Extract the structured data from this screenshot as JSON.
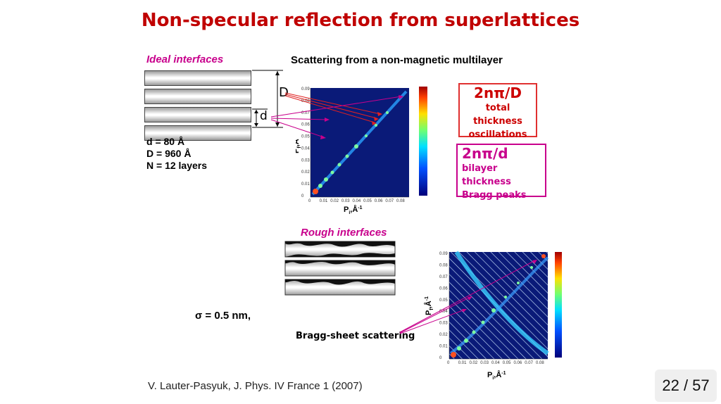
{
  "slide": {
    "title": "Non-specular reflection from superlattices",
    "ideal_label": "Ideal interfaces",
    "rough_label": "Rough interfaces",
    "dim_D": "D",
    "dim_d": "d",
    "params": [
      "d = 80 Å",
      "D = 960 Å",
      "N = 12 layers"
    ],
    "scatter_title": "Scattering from a non-magnetic multilayer",
    "box_total": {
      "formula": "2nπ/D",
      "line1": "total thickness",
      "line2": "oscillations"
    },
    "box_bilayer": {
      "formula": "2nπ/d",
      "line1": "bilayer thickness",
      "line2": "Bragg peaks"
    },
    "sigma": "σ = 0.5 nm,",
    "bragg_sheet": "Bragg-sheet scattering",
    "citation": "V. Lauter-Pasyuk, J. Phys. IV France 1 (2007)",
    "page": "22 / 57"
  },
  "colors": {
    "title": "#c00000",
    "magenta": "#c8008c",
    "red": "#e03030",
    "map_bg": "#0a1a78"
  },
  "maps": {
    "x_ticks": [
      "0",
      "0.01",
      "0.02",
      "0.03",
      "0.04",
      "0.05",
      "0.06",
      "0.07",
      "0.08"
    ],
    "y_ticks": [
      "0",
      "0.01",
      "0.02",
      "0.03",
      "0.04",
      "0.05",
      "0.06",
      "0.07",
      "0.08",
      "0.09"
    ],
    "x_label": "P",
    "x_label_sub": "i",
    "x_label_unit": ",Å",
    "x_label_sup": "-1",
    "y_label": "P",
    "y_label_sub": "f",
    "y_label_unit": ",Å",
    "y_label_sup": "-1"
  }
}
